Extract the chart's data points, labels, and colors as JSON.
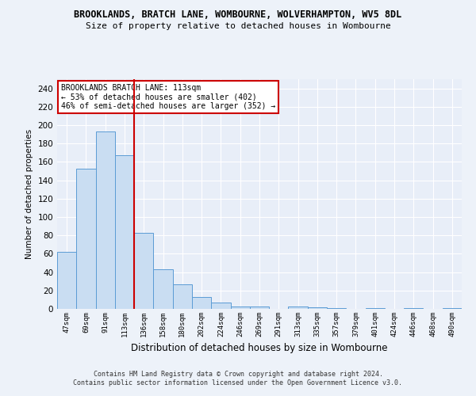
{
  "title": "BROOKLANDS, BRATCH LANE, WOMBOURNE, WOLVERHAMPTON, WV5 8DL",
  "subtitle": "Size of property relative to detached houses in Wombourne",
  "xlabel": "Distribution of detached houses by size in Wombourne",
  "ylabel": "Number of detached properties",
  "bar_labels": [
    "47sqm",
    "69sqm",
    "91sqm",
    "113sqm",
    "136sqm",
    "158sqm",
    "180sqm",
    "202sqm",
    "224sqm",
    "246sqm",
    "269sqm",
    "291sqm",
    "313sqm",
    "335sqm",
    "357sqm",
    "379sqm",
    "401sqm",
    "424sqm",
    "446sqm",
    "468sqm",
    "490sqm"
  ],
  "bar_values": [
    62,
    153,
    193,
    167,
    83,
    43,
    27,
    13,
    7,
    3,
    3,
    0,
    3,
    2,
    1,
    0,
    1,
    0,
    1,
    0,
    1
  ],
  "bar_color": "#c9ddf2",
  "bar_edge_color": "#5b9bd5",
  "highlight_index": 3,
  "highlight_line_color": "#cc0000",
  "ylim": [
    0,
    250
  ],
  "yticks": [
    0,
    20,
    40,
    60,
    80,
    100,
    120,
    140,
    160,
    180,
    200,
    220,
    240
  ],
  "annotation_text": "BROOKLANDS BRATCH LANE: 113sqm\n← 53% of detached houses are smaller (402)\n46% of semi-detached houses are larger (352) →",
  "annotation_box_color": "#ffffff",
  "annotation_box_edge_color": "#cc0000",
  "bg_color": "#e8eef8",
  "fig_bg_color": "#edf2f9",
  "footer_line1": "Contains HM Land Registry data © Crown copyright and database right 2024.",
  "footer_line2": "Contains public sector information licensed under the Open Government Licence v3.0."
}
